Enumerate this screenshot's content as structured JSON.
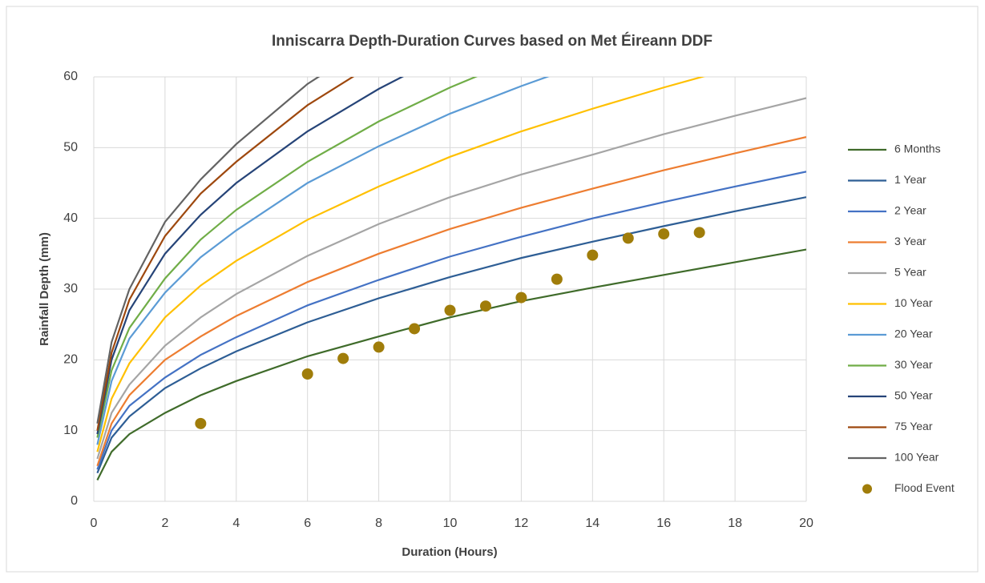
{
  "chart_data": {
    "type": "line",
    "title": "Inniscarra Depth-Duration Curves based on Met Éireann DDF",
    "x_label": "Duration (Hours)",
    "y_label": "Rainfall Depth (mm)",
    "x": [
      0.1,
      0.5,
      1,
      2,
      3,
      4,
      6,
      8,
      10,
      12,
      14,
      16,
      18,
      20
    ],
    "series": [
      {
        "name": "6 Months",
        "color": "#3f6b2a",
        "values": [
          3,
          7,
          9.5,
          12.5,
          15,
          17,
          20.5,
          23.3,
          26,
          28.3,
          30.2,
          32,
          33.8,
          35.6
        ]
      },
      {
        "name": "1 Year",
        "color": "#2e5e95",
        "values": [
          4,
          9,
          12,
          16,
          18.8,
          21.2,
          25.3,
          28.7,
          31.7,
          34.4,
          36.7,
          38.9,
          41,
          43
        ]
      },
      {
        "name": "2 Year",
        "color": "#4472c4",
        "values": [
          4.5,
          10,
          13.5,
          17.5,
          20.7,
          23.2,
          27.7,
          31.3,
          34.6,
          37.4,
          40,
          42.3,
          44.5,
          46.6
        ]
      },
      {
        "name": "3 Year",
        "color": "#ed7d31",
        "values": [
          5,
          11,
          15,
          20,
          23.3,
          26.2,
          31,
          35,
          38.5,
          41.5,
          44.2,
          46.8,
          49.2,
          51.5
        ]
      },
      {
        "name": "5 Year",
        "color": "#a5a5a5",
        "values": [
          6,
          12.5,
          16.5,
          22,
          26,
          29.3,
          34.7,
          39.2,
          43,
          46.2,
          49,
          51.9,
          54.5,
          57
        ]
      },
      {
        "name": "10 Year",
        "color": "#ffc000",
        "values": [
          7,
          14.5,
          19.5,
          26,
          30.5,
          34,
          39.8,
          44.5,
          48.7,
          52.3,
          55.5,
          58.5,
          61.3,
          null
        ]
      },
      {
        "name": "20 Year",
        "color": "#5b9bd5",
        "values": [
          8,
          17,
          23,
          29.5,
          34.5,
          38.3,
          45,
          50.2,
          54.8,
          58.7,
          62.3,
          null,
          null,
          null
        ]
      },
      {
        "name": "30 Year",
        "color": "#70ad47",
        "values": [
          9,
          18.5,
          24.5,
          31.5,
          37,
          41.2,
          48,
          53.7,
          58.5,
          62.7,
          null,
          null,
          null,
          null
        ]
      },
      {
        "name": "50 Year",
        "color": "#264478",
        "values": [
          9.5,
          20,
          27,
          35,
          40.5,
          45,
          52.3,
          58.3,
          63.5,
          null,
          null,
          null,
          null,
          null
        ]
      },
      {
        "name": "75 Year",
        "color": "#9e480e",
        "values": [
          10,
          21,
          28.5,
          37.5,
          43.5,
          48,
          56,
          62.3,
          null,
          null,
          null,
          null,
          null,
          null
        ]
      },
      {
        "name": "100 Year",
        "color": "#636363",
        "values": [
          11,
          22.5,
          30,
          39.5,
          45.5,
          50.5,
          59,
          65.5,
          null,
          null,
          null,
          null,
          null,
          null
        ]
      },
      {
        "name": "Flood Event",
        "type": "scatter",
        "color": "#a07d0a",
        "x": [
          3,
          6,
          7,
          8,
          9,
          10,
          11,
          12,
          13,
          14,
          15,
          16,
          17
        ],
        "values": [
          11,
          18,
          20.2,
          21.8,
          24.4,
          27,
          27.6,
          28.8,
          31.4,
          34.8,
          37.2,
          37.8,
          38
        ]
      }
    ],
    "xlim": [
      0,
      20
    ],
    "xticks": [
      0,
      2,
      4,
      6,
      8,
      10,
      12,
      14,
      16,
      18,
      20
    ],
    "ylim": [
      0,
      60
    ],
    "yticks": [
      0,
      10,
      20,
      30,
      40,
      50,
      60
    ],
    "grid": true,
    "legend": "right"
  }
}
